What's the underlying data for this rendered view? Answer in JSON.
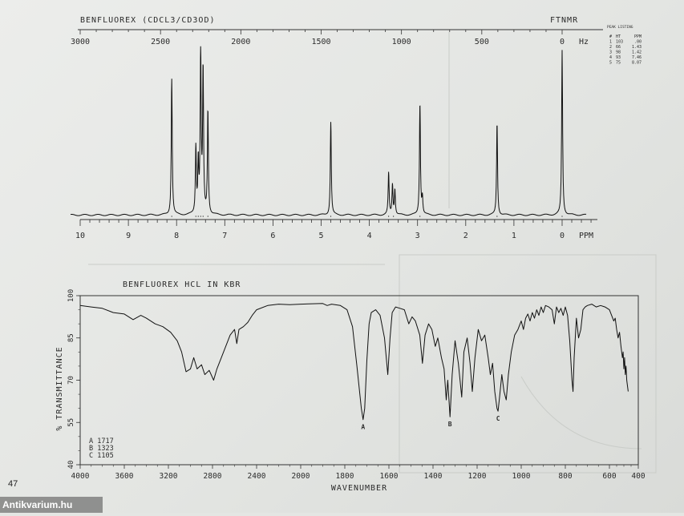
{
  "page_number": "47",
  "watermark": "Antikvarium.hu",
  "chart_data": [
    {
      "type": "line",
      "title": "BENFLUOREX (CDCL3/CD3OD)",
      "method": "FTNMR",
      "x_top": {
        "unit": "Hz",
        "range": [
          3000,
          0
        ],
        "ticks": [
          "3000",
          "2500",
          "2000",
          "1500",
          "1000",
          "500",
          "0"
        ]
      },
      "x_bottom": {
        "unit": "PPM",
        "range": [
          10,
          0
        ],
        "ticks": [
          "10",
          "9",
          "8",
          "7",
          "6",
          "5",
          "4",
          "3",
          "2",
          "1",
          "0"
        ]
      },
      "peaks_ppm": [
        8.1,
        7.6,
        7.55,
        7.5,
        7.45,
        7.35,
        4.8,
        3.6,
        3.5,
        2.95,
        1.35,
        0.0
      ],
      "peak_listing": {
        "header": "PEAK LISTING",
        "columns": [
          "#",
          "HT",
          "PPM"
        ],
        "rows": [
          [
            "#",
            "HT",
            "PPM"
          ],
          [
            "1",
            "103",
            ".00"
          ],
          [
            "2",
            "66",
            "1.43"
          ],
          [
            "3",
            "98",
            "1.42"
          ],
          [
            "4",
            "93",
            "7.46"
          ],
          [
            "5",
            "75",
            "8.07"
          ]
        ]
      }
    },
    {
      "type": "line",
      "title": "BENFLUOREX HCL IN KBR",
      "xlabel": "WAVENUMBER",
      "ylabel": "% TRANSMITTANCE",
      "xlim": [
        4000,
        400
      ],
      "ylim": [
        40,
        100
      ],
      "x_ticks": [
        "4000",
        "3600",
        "3200",
        "2800",
        "2400",
        "2000",
        "1800",
        "1600",
        "1400",
        "1200",
        "1000",
        "800",
        "600",
        "400"
      ],
      "y_ticks": [
        "100",
        "85",
        "70",
        "55",
        "40"
      ],
      "annotations": [
        {
          "label": "A",
          "x": 1717,
          "y": 56
        },
        {
          "label": "B",
          "x": 1323,
          "y": 57
        },
        {
          "label": "C",
          "x": 1105,
          "y": 59
        }
      ],
      "legend_lines": [
        "A 1717",
        "B 1323",
        "C 1105"
      ],
      "spectrum": [
        [
          4000,
          96.5
        ],
        [
          3900,
          96
        ],
        [
          3800,
          95.5
        ],
        [
          3700,
          94
        ],
        [
          3600,
          93.5
        ],
        [
          3520,
          91.5
        ],
        [
          3450,
          93
        ],
        [
          3400,
          92
        ],
        [
          3320,
          90
        ],
        [
          3250,
          89
        ],
        [
          3180,
          87
        ],
        [
          3120,
          84
        ],
        [
          3080,
          80
        ],
        [
          3040,
          73
        ],
        [
          3000,
          74
        ],
        [
          2970,
          78
        ],
        [
          2940,
          74
        ],
        [
          2900,
          75.5
        ],
        [
          2870,
          72
        ],
        [
          2830,
          73.5
        ],
        [
          2790,
          70
        ],
        [
          2760,
          74
        ],
        [
          2720,
          78
        ],
        [
          2680,
          82
        ],
        [
          2640,
          86
        ],
        [
          2600,
          88
        ],
        [
          2580,
          83
        ],
        [
          2560,
          88
        ],
        [
          2520,
          89
        ],
        [
          2480,
          90.5
        ],
        [
          2440,
          93
        ],
        [
          2400,
          95
        ],
        [
          2300,
          96.5
        ],
        [
          2200,
          97
        ],
        [
          2100,
          96.8
        ],
        [
          2000,
          97
        ],
        [
          1900,
          97.2
        ],
        [
          1880,
          96.5
        ],
        [
          1860,
          97
        ],
        [
          1820,
          96.5
        ],
        [
          1790,
          95
        ],
        [
          1765,
          89
        ],
        [
          1745,
          75
        ],
        [
          1725,
          60
        ],
        [
          1717,
          56
        ],
        [
          1710,
          60
        ],
        [
          1700,
          77
        ],
        [
          1690,
          90
        ],
        [
          1680,
          94
        ],
        [
          1660,
          95
        ],
        [
          1640,
          93
        ],
        [
          1620,
          85
        ],
        [
          1605,
          72
        ],
        [
          1595,
          85
        ],
        [
          1585,
          94
        ],
        [
          1570,
          96
        ],
        [
          1550,
          95.5
        ],
        [
          1530,
          95
        ],
        [
          1510,
          90
        ],
        [
          1495,
          92.5
        ],
        [
          1480,
          91
        ],
        [
          1460,
          86
        ],
        [
          1448,
          76
        ],
        [
          1436,
          86
        ],
        [
          1420,
          90
        ],
        [
          1405,
          88
        ],
        [
          1390,
          82
        ],
        [
          1378,
          85
        ],
        [
          1362,
          78
        ],
        [
          1350,
          74
        ],
        [
          1340,
          63
        ],
        [
          1333,
          70
        ],
        [
          1323,
          57
        ],
        [
          1313,
          72
        ],
        [
          1300,
          84
        ],
        [
          1285,
          76
        ],
        [
          1270,
          64
        ],
        [
          1260,
          80
        ],
        [
          1245,
          85
        ],
        [
          1232,
          76
        ],
        [
          1222,
          66
        ],
        [
          1210,
          78
        ],
        [
          1195,
          88
        ],
        [
          1180,
          84
        ],
        [
          1165,
          86
        ],
        [
          1150,
          78
        ],
        [
          1140,
          72
        ],
        [
          1130,
          76
        ],
        [
          1120,
          66
        ],
        [
          1110,
          60
        ],
        [
          1105,
          59
        ],
        [
          1098,
          64
        ],
        [
          1088,
          72
        ],
        [
          1078,
          66
        ],
        [
          1068,
          63
        ],
        [
          1058,
          72
        ],
        [
          1045,
          80
        ],
        [
          1030,
          86
        ],
        [
          1015,
          88
        ],
        [
          1000,
          91
        ],
        [
          990,
          88
        ],
        [
          980,
          92
        ],
        [
          970,
          93.5
        ],
        [
          960,
          91
        ],
        [
          950,
          94
        ],
        [
          940,
          92
        ],
        [
          930,
          95
        ],
        [
          920,
          93
        ],
        [
          910,
          96
        ],
        [
          900,
          94
        ],
        [
          890,
          96.5
        ],
        [
          875,
          96
        ],
        [
          860,
          95
        ],
        [
          850,
          90
        ],
        [
          840,
          96
        ],
        [
          830,
          94
        ],
        [
          820,
          95.5
        ],
        [
          810,
          93
        ],
        [
          800,
          96
        ],
        [
          790,
          93
        ],
        [
          780,
          84
        ],
        [
          770,
          70
        ],
        [
          765,
          66
        ],
        [
          760,
          78
        ],
        [
          750,
          92
        ],
        [
          740,
          85
        ],
        [
          730,
          88
        ],
        [
          720,
          95
        ],
        [
          710,
          96
        ],
        [
          700,
          96.5
        ],
        [
          680,
          97
        ],
        [
          660,
          96
        ],
        [
          640,
          96.5
        ],
        [
          620,
          96
        ],
        [
          600,
          95
        ],
        [
          585,
          93
        ],
        [
          570,
          91
        ],
        [
          560,
          92
        ],
        [
          550,
          88
        ],
        [
          540,
          85
        ],
        [
          530,
          87
        ],
        [
          520,
          82
        ],
        [
          510,
          78
        ],
        [
          505,
          80
        ],
        [
          500,
          74
        ],
        [
          495,
          78
        ],
        [
          490,
          72
        ],
        [
          485,
          75
        ],
        [
          480,
          70
        ],
        [
          470,
          66
        ]
      ]
    }
  ]
}
